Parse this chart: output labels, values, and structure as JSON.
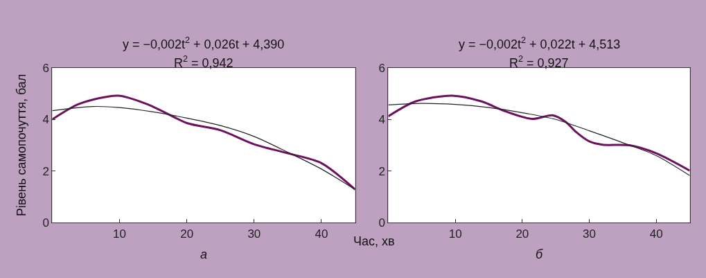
{
  "chart_data": [
    {
      "type": "line",
      "title": "y = −0,002t$^{2}$ + 0,026t + 4,390",
      "subtitle": "R$^{2}$ = 0,942",
      "xlabel": "Час, хв",
      "ylabel": "Рівень самопочуття, бал",
      "annotations": [
        "а"
      ],
      "xlim": [
        0,
        45
      ],
      "ylim": [
        0,
        6
      ],
      "xticks": [
        10,
        20,
        30,
        40
      ],
      "yticks": [
        0,
        2,
        4,
        6
      ],
      "grid": false,
      "marker": "none",
      "line_style": "solid",
      "series": [
        {
          "color": "#6e1060",
          "x": [
            0,
            4,
            9.8,
            14,
            16.5,
            20,
            25,
            30,
            35,
            40,
            45
          ],
          "values": [
            4.0,
            4.6,
            4.92,
            4.6,
            4.3,
            3.86,
            3.58,
            3.04,
            2.69,
            2.31,
            1.29
          ]
        },
        {
          "color": "#222222",
          "x": [
            0,
            6,
            10,
            15,
            20,
            25,
            30,
            35,
            40,
            45
          ],
          "values": [
            4.34,
            4.5,
            4.46,
            4.29,
            4.05,
            3.76,
            3.34,
            2.73,
            2.08,
            1.29
          ]
        }
      ]
    },
    {
      "type": "line",
      "title": "y = −0,002t$^{2}$ + 0,022t + 4,513",
      "subtitle": "R$^{2}$ = 0,927",
      "annotations": [
        "б"
      ],
      "xlim": [
        0,
        45
      ],
      "ylim": [
        0,
        6
      ],
      "xticks": [
        10,
        20,
        30,
        40
      ],
      "yticks": [
        0,
        2,
        4,
        6
      ],
      "grid": false,
      "marker": "none",
      "line_style": "solid",
      "series": [
        {
          "color": "#6e1060",
          "x": [
            0,
            4,
            9.5,
            14,
            17,
            21.5,
            24.5,
            26.5,
            28,
            30,
            32,
            36,
            40,
            45
          ],
          "values": [
            4.12,
            4.69,
            4.92,
            4.69,
            4.36,
            4.02,
            4.16,
            3.9,
            3.52,
            3.15,
            3.02,
            3.0,
            2.69,
            2.02
          ]
        },
        {
          "color": "#222222",
          "x": [
            0,
            5,
            10,
            15,
            20,
            25,
            30,
            35,
            40,
            45
          ],
          "values": [
            4.56,
            4.62,
            4.58,
            4.46,
            4.26,
            4.0,
            3.56,
            3.1,
            2.6,
            1.83
          ]
        }
      ]
    }
  ]
}
